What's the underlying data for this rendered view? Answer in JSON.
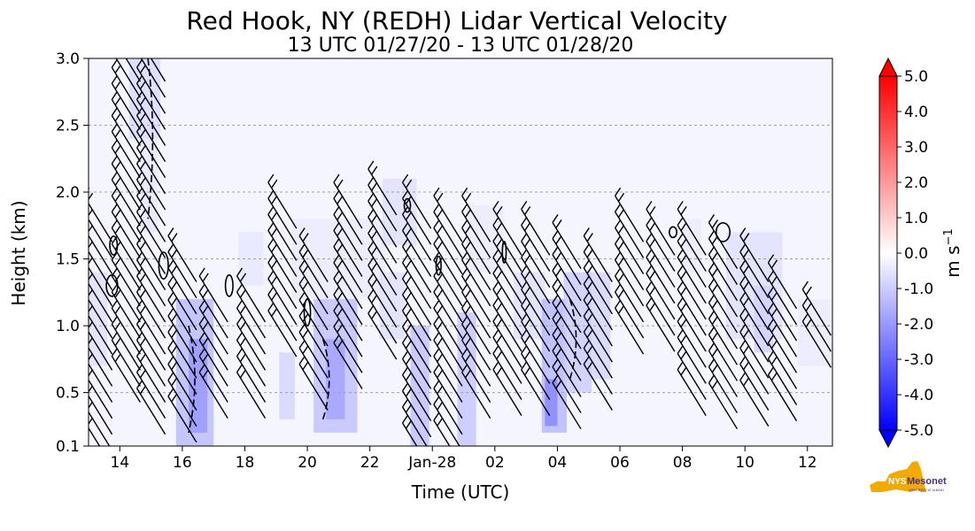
{
  "chart_data": {
    "type": "heatmap",
    "title": "Red Hook, NY (REDH) Lidar Vertical Velocity",
    "subtitle": "13 UTC 01/27/20 - 13 UTC 01/28/20",
    "xlabel": "Time (UTC)",
    "ylabel": "Height (km)",
    "xlim": [
      13,
      36.8
    ],
    "ylim": [
      0.1,
      3.0
    ],
    "x_ticks": [
      14,
      16,
      18,
      20,
      22,
      24,
      26,
      28,
      30,
      32,
      34,
      36
    ],
    "x_tick_labels": [
      "14",
      "16",
      "18",
      "20",
      "22",
      "Jan-28",
      "02",
      "04",
      "06",
      "08",
      "10",
      "12"
    ],
    "y_ticks": [
      0.1,
      0.5,
      1.0,
      1.5,
      2.0,
      2.5,
      3.0
    ],
    "y_tick_labels": [
      "0.1",
      "0.5",
      "1.0",
      "1.5",
      "2.0",
      "2.5",
      "3.0"
    ],
    "grid": "horizontal dashed at 0.5, 1.0, 1.5, 2.0, 2.5",
    "colorbar": {
      "label": "m s$^{-1}$",
      "label_main": "m s",
      "label_sup": "−1",
      "min": -5.0,
      "max": 5.0,
      "ticks": [
        5.0,
        4.0,
        3.0,
        2.0,
        1.0,
        0.0,
        -1.0,
        -2.0,
        -3.0,
        -4.0,
        -5.0
      ],
      "tick_labels": [
        "5.0",
        "4.0",
        "3.0",
        "2.0",
        "1.0",
        "0.0",
        "-1.0",
        "-2.0",
        "-3.0",
        "-4.0",
        "-5.0"
      ],
      "colors": {
        "negative": "#0000ff",
        "zero": "#ffffff",
        "positive": "#ff0000"
      }
    },
    "background_value": -0.2,
    "velocity_cells": [
      {
        "x0": 13.0,
        "x1": 13.6,
        "y0": 0.7,
        "y1": 1.4,
        "v": -0.6
      },
      {
        "x0": 14.3,
        "x1": 15.3,
        "y0": 2.4,
        "y1": 3.0,
        "v": -0.7
      },
      {
        "x0": 14.7,
        "x1": 15.2,
        "y0": 1.7,
        "y1": 2.4,
        "v": -0.5
      },
      {
        "x0": 15.8,
        "x1": 17.0,
        "y0": 0.1,
        "y1": 1.2,
        "v": -1.3
      },
      {
        "x0": 16.2,
        "x1": 16.8,
        "y0": 0.2,
        "y1": 0.9,
        "v": -2.0
      },
      {
        "x0": 17.8,
        "x1": 18.6,
        "y0": 1.3,
        "y1": 1.7,
        "v": -0.5
      },
      {
        "x0": 19.1,
        "x1": 19.6,
        "y0": 0.3,
        "y1": 0.8,
        "v": -0.8
      },
      {
        "x0": 20.2,
        "x1": 21.6,
        "y0": 0.2,
        "y1": 1.2,
        "v": -1.2
      },
      {
        "x0": 20.6,
        "x1": 21.2,
        "y0": 0.3,
        "y1": 0.9,
        "v": -1.8
      },
      {
        "x0": 19.5,
        "x1": 22.5,
        "y0": 1.2,
        "y1": 1.8,
        "v": -0.4
      },
      {
        "x0": 22.3,
        "x1": 23.1,
        "y0": 0.9,
        "y1": 1.4,
        "v": -0.6
      },
      {
        "x0": 22.4,
        "x1": 23.5,
        "y0": 1.6,
        "y1": 2.1,
        "v": -0.6
      },
      {
        "x0": 23.3,
        "x1": 23.9,
        "y0": 0.1,
        "y1": 1.0,
        "v": -1.2
      },
      {
        "x0": 24.8,
        "x1": 25.4,
        "y0": 0.1,
        "y1": 1.1,
        "v": -1.1
      },
      {
        "x0": 25.1,
        "x1": 26.3,
        "y0": 1.4,
        "y1": 1.9,
        "v": -0.4
      },
      {
        "x0": 26.6,
        "x1": 27.6,
        "y0": 0.9,
        "y1": 1.4,
        "v": -0.6
      },
      {
        "x0": 27.5,
        "x1": 28.3,
        "y0": 0.2,
        "y1": 1.2,
        "v": -1.4
      },
      {
        "x0": 27.6,
        "x1": 28.0,
        "y0": 0.25,
        "y1": 0.6,
        "v": -2.3
      },
      {
        "x0": 28.2,
        "x1": 29.1,
        "y0": 0.5,
        "y1": 1.4,
        "v": -1.0
      },
      {
        "x0": 29.1,
        "x1": 29.7,
        "y0": 0.6,
        "y1": 1.4,
        "v": -0.8
      },
      {
        "x0": 32.0,
        "x1": 32.6,
        "y0": 1.4,
        "y1": 1.8,
        "v": -0.4
      },
      {
        "x0": 33.4,
        "x1": 35.2,
        "y0": 0.9,
        "y1": 1.7,
        "v": -0.6
      },
      {
        "x0": 34.3,
        "x1": 34.9,
        "y0": 0.8,
        "y1": 1.3,
        "v": -0.9
      },
      {
        "x0": 35.7,
        "x1": 36.8,
        "y0": 0.7,
        "y1": 1.2,
        "v": -0.4
      }
    ],
    "contours": [
      {
        "x": 13.8,
        "y": 1.6,
        "rx": 0.12,
        "ry": 0.07
      },
      {
        "x": 13.75,
        "y": 1.3,
        "rx": 0.18,
        "ry": 0.08
      },
      {
        "x": 15.4,
        "y": 1.45,
        "rx": 0.15,
        "ry": 0.1
      },
      {
        "x": 17.5,
        "y": 1.3,
        "rx": 0.12,
        "ry": 0.08
      },
      {
        "x": 20.0,
        "y": 1.1,
        "rx": 0.1,
        "ry": 0.1
      },
      {
        "x": 24.2,
        "y": 1.45,
        "rx": 0.08,
        "ry": 0.07
      },
      {
        "x": 26.3,
        "y": 1.55,
        "rx": 0.06,
        "ry": 0.08
      },
      {
        "x": 23.2,
        "y": 1.9,
        "rx": 0.1,
        "ry": 0.05
      },
      {
        "x": 33.3,
        "y": 1.7,
        "rx": 0.22,
        "ry": 0.07
      },
      {
        "x": 31.7,
        "y": 1.7,
        "rx": 0.12,
        "ry": 0.04
      }
    ],
    "dashed_contours": [
      {
        "x0": 14.9,
        "x1": 15.2,
        "y0": 1.8,
        "y1": 3.0
      },
      {
        "x0": 16.2,
        "x1": 16.6,
        "y0": 0.2,
        "y1": 1.0
      },
      {
        "x0": 20.5,
        "x1": 20.9,
        "y0": 0.3,
        "y1": 0.9
      },
      {
        "x0": 28.4,
        "x1": 28.8,
        "y0": 0.6,
        "y1": 1.2
      }
    ],
    "barb_columns": [
      {
        "x": 13.3,
        "y_top": 1.8,
        "y_bot": 0.1
      },
      {
        "x": 14.2,
        "y_top": 3.0,
        "y_bot": 0.6
      },
      {
        "x": 15.0,
        "y_top": 3.0,
        "y_bot": 0.3
      },
      {
        "x": 16.0,
        "y_top": 1.5,
        "y_bot": 0.3
      },
      {
        "x": 17.0,
        "y_top": 1.2,
        "y_bot": 0.4
      },
      {
        "x": 18.2,
        "y_top": 1.2,
        "y_bot": 0.4
      },
      {
        "x": 19.2,
        "y_top": 1.9,
        "y_bot": 0.9
      },
      {
        "x": 20.2,
        "y_top": 1.5,
        "y_bot": 0.5
      },
      {
        "x": 21.3,
        "y_top": 1.9,
        "y_bot": 0.7
      },
      {
        "x": 22.4,
        "y_top": 2.0,
        "y_bot": 0.9
      },
      {
        "x": 23.5,
        "y_top": 1.9,
        "y_bot": 0.1
      },
      {
        "x": 24.5,
        "y_top": 1.8,
        "y_bot": 0.1
      },
      {
        "x": 25.4,
        "y_top": 1.8,
        "y_bot": 0.4
      },
      {
        "x": 26.4,
        "y_top": 1.7,
        "y_bot": 0.5
      },
      {
        "x": 27.3,
        "y_top": 1.7,
        "y_bot": 0.5
      },
      {
        "x": 28.3,
        "y_top": 1.6,
        "y_bot": 0.4
      },
      {
        "x": 29.3,
        "y_top": 1.5,
        "y_bot": 0.5
      },
      {
        "x": 30.3,
        "y_top": 1.8,
        "y_bot": 0.9
      },
      {
        "x": 31.3,
        "y_top": 1.7,
        "y_bot": 0.9
      },
      {
        "x": 32.3,
        "y_top": 1.7,
        "y_bot": 0.5
      },
      {
        "x": 33.3,
        "y_top": 1.6,
        "y_bot": 0.3
      },
      {
        "x": 34.3,
        "y_top": 1.5,
        "y_bot": 0.4
      },
      {
        "x": 35.2,
        "y_top": 1.3,
        "y_bot": 0.4
      },
      {
        "x": 36.3,
        "y_top": 1.1,
        "y_bot": 0.8
      }
    ]
  },
  "logo": {
    "text_main": "NYS Mesonet",
    "text_sub": "UNIVERSITY AT ALBANY",
    "color_state": "#f2a900",
    "color_text": "#4b2e83"
  }
}
